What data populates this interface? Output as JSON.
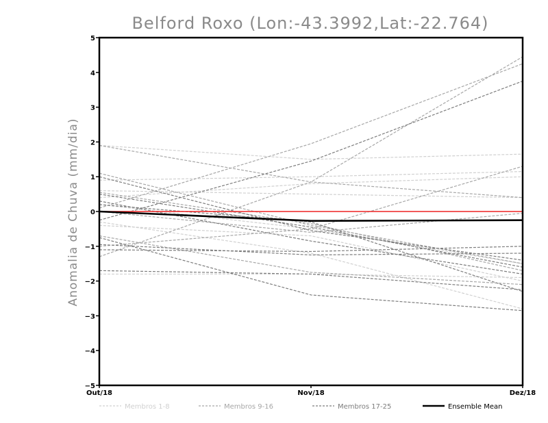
{
  "chart_data": {
    "type": "line",
    "title": "Belford Roxo (Lon:-43.3992,Lat:-22.764)",
    "xlabel": "",
    "ylabel": "Anomalia de Chuva (mm/dia)",
    "categories": [
      "Out/18",
      "Nov/18",
      "Dez/18"
    ],
    "ylim": [
      -5,
      5
    ],
    "yticks": [
      -5,
      -4,
      -3,
      -2,
      -1,
      0,
      1,
      2,
      3,
      4,
      5
    ],
    "grid": false,
    "reference_line": {
      "value": 0,
      "color": "#ee2222"
    },
    "legend": [
      {
        "name": "Membros 1-8",
        "color": "#d0d0d0",
        "style": "dashed"
      },
      {
        "name": "Membros 9-16",
        "color": "#a6a6a6",
        "style": "dashed"
      },
      {
        "name": "Membros 17-25",
        "color": "#7c7c7c",
        "style": "dashed"
      },
      {
        "name": "Ensemble Mean",
        "color": "#000000",
        "style": "solid"
      }
    ],
    "series": [
      {
        "group": 0,
        "values": [
          1.9,
          1.5,
          1.65
        ]
      },
      {
        "group": 0,
        "values": [
          0.9,
          1.0,
          1.15
        ]
      },
      {
        "group": 0,
        "values": [
          0.6,
          0.5,
          0.4
        ]
      },
      {
        "group": 0,
        "values": [
          0.4,
          0.8,
          1.0
        ]
      },
      {
        "group": 0,
        "values": [
          -0.3,
          -1.2,
          -2.8
        ]
      },
      {
        "group": 0,
        "values": [
          -1.8,
          -1.8,
          -1.9
        ]
      },
      {
        "group": 0,
        "values": [
          0.2,
          -0.5,
          -1.5
        ]
      },
      {
        "group": 0,
        "values": [
          -0.4,
          -0.7,
          -2.0
        ]
      },
      {
        "group": 1,
        "values": [
          1.9,
          0.85,
          0.4
        ]
      },
      {
        "group": 1,
        "values": [
          0.1,
          1.95,
          4.25
        ]
      },
      {
        "group": 1,
        "values": [
          -1.0,
          -0.5,
          1.3
        ]
      },
      {
        "group": 1,
        "values": [
          -0.7,
          -1.75,
          -2.1
        ]
      },
      {
        "group": 1,
        "values": [
          1.1,
          -0.4,
          -1.5
        ]
      },
      {
        "group": 1,
        "values": [
          -1.3,
          0.85,
          4.45
        ]
      },
      {
        "group": 1,
        "values": [
          0.55,
          -0.35,
          -1.7
        ]
      },
      {
        "group": 1,
        "values": [
          0.0,
          -0.6,
          -0.05
        ]
      },
      {
        "group": 2,
        "values": [
          -0.25,
          1.45,
          3.75
        ]
      },
      {
        "group": 2,
        "values": [
          -0.75,
          -2.4,
          -2.85
        ]
      },
      {
        "group": 2,
        "values": [
          -1.1,
          -1.15,
          -1.0
        ]
      },
      {
        "group": 2,
        "values": [
          -1.7,
          -1.8,
          -2.25
        ]
      },
      {
        "group": 2,
        "values": [
          0.3,
          -0.85,
          -1.8
        ]
      },
      {
        "group": 2,
        "values": [
          1.0,
          -0.55,
          -1.4
        ]
      },
      {
        "group": 2,
        "values": [
          0.5,
          -0.45,
          -1.6
        ]
      },
      {
        "group": 2,
        "values": [
          -0.95,
          -1.25,
          -1.2
        ]
      },
      {
        "group": 2,
        "values": [
          0.2,
          -0.3,
          -2.3
        ]
      }
    ],
    "ensemble_mean": {
      "name": "Ensemble Mean",
      "values": [
        0.0,
        -0.27,
        -0.25
      ]
    }
  }
}
